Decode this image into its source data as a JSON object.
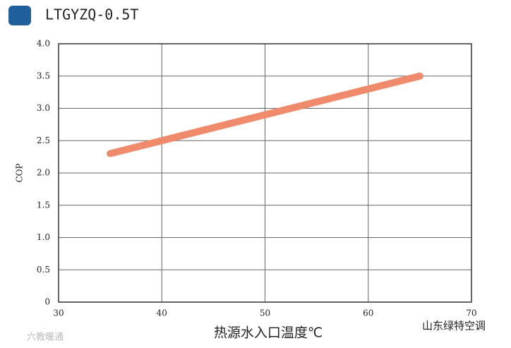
{
  "chart_data": {
    "type": "line",
    "title": "LTGYZQ-0.5T",
    "xlabel": "热源水入口温度℃",
    "ylabel": "COP",
    "x": [
      35,
      65
    ],
    "series": [
      {
        "name": null,
        "color": "#ef8a6c",
        "values": [
          2.3,
          3.5
        ]
      }
    ],
    "xlim": [
      30,
      70
    ],
    "xticks": [
      30,
      40,
      50,
      60,
      70
    ],
    "ylim": [
      0,
      4
    ],
    "yticks": [
      0,
      0.5,
      {
        "value": 1,
        "label": "1.0"
      },
      1.5,
      {
        "value": 2,
        "label": "2.0"
      },
      2.5,
      {
        "value": 3,
        "label": "3.0"
      },
      3.5,
      {
        "value": 4,
        "label": "4.0"
      }
    ],
    "grid": true,
    "annotations": [
      "山东绿特空调",
      "六教暖通"
    ]
  }
}
